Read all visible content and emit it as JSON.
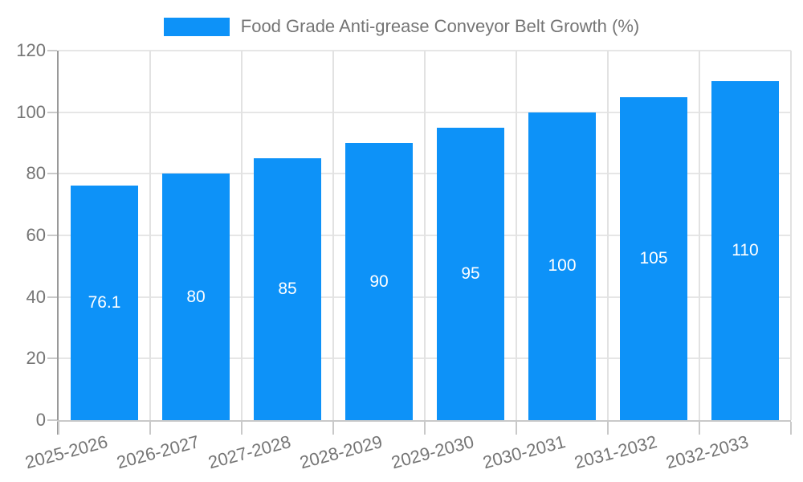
{
  "legend": {
    "label": "Food Grade Anti-grease Conveyor Belt Growth (%)"
  },
  "chart_data": {
    "type": "bar",
    "title": "Food Grade Anti-grease Conveyor Belt Growth (%)",
    "categories": [
      "2025-2026",
      "2026-2027",
      "2027-2028",
      "2028-2029",
      "2029-2030",
      "2030-2031",
      "2031-2032",
      "2032-2033"
    ],
    "values": [
      76.1,
      80,
      85,
      90,
      95,
      100,
      105,
      110
    ],
    "bar_value_labels": [
      "76.1",
      "80",
      "85",
      "90",
      "95",
      "100",
      "105",
      "110"
    ],
    "xlabel": "",
    "ylabel": "",
    "ylim": [
      0,
      120
    ],
    "yticks": [
      0,
      20,
      40,
      60,
      80,
      100,
      120
    ],
    "grid": "on",
    "legend_position": "top-center",
    "colors": {
      "bar": "#0d92f8",
      "axis_text": "#757575",
      "value_label_text": "#ffffff",
      "gridline": "#e6e6e6",
      "y_axis_line": "#999999",
      "x_axis_line": "#c9c9c9"
    }
  }
}
